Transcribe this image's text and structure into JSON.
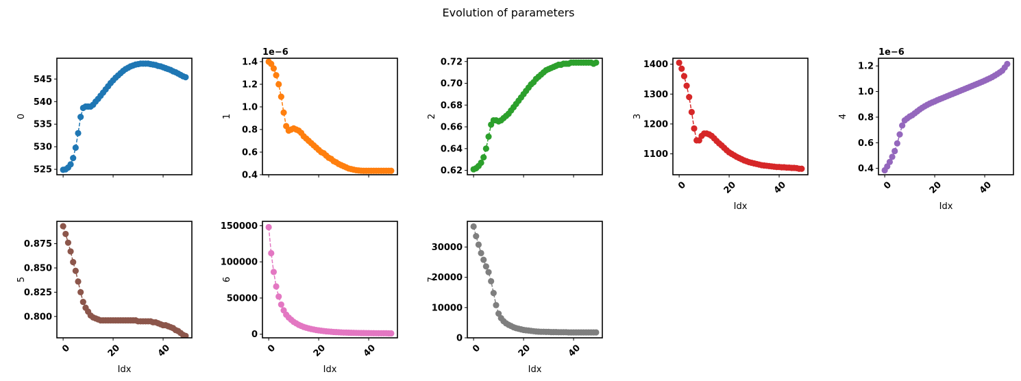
{
  "figure": {
    "suptitle": "Evolution of parameters"
  },
  "chart_data": [
    {
      "type": "line",
      "marker": "circle",
      "linestyle": "dashed",
      "color": "#1f77b4",
      "ylabel": "0",
      "xlabel": "",
      "xlim": [
        -2.5,
        51.5
      ],
      "ylim": [
        523.8,
        549.6
      ],
      "yticks": [
        525,
        530,
        535,
        540,
        545
      ],
      "ytick_labels": [
        "525",
        "530",
        "535",
        "540",
        "545"
      ],
      "xticks": [
        0,
        20,
        40
      ],
      "xtick_labels": [],
      "offset": "",
      "x": [
        0,
        1,
        2,
        3,
        4,
        5,
        6,
        7,
        8,
        9,
        10,
        11,
        12,
        13,
        14,
        15,
        16,
        17,
        18,
        19,
        20,
        21,
        22,
        23,
        24,
        25,
        26,
        27,
        28,
        29,
        30,
        31,
        32,
        33,
        34,
        35,
        36,
        37,
        38,
        39,
        40,
        41,
        42,
        43,
        44,
        45,
        46,
        47,
        48,
        49
      ],
      "y": [
        524.9,
        525.0,
        525.4,
        526.1,
        527.5,
        529.8,
        533.0,
        536.6,
        538.6,
        538.9,
        538.9,
        538.9,
        539.3,
        540.0,
        540.6,
        541.3,
        542.0,
        542.7,
        543.4,
        544.1,
        544.7,
        545.3,
        545.8,
        546.3,
        546.8,
        547.2,
        547.5,
        547.8,
        548.0,
        548.2,
        548.3,
        548.4,
        548.4,
        548.4,
        548.4,
        548.3,
        548.2,
        548.1,
        547.9,
        547.8,
        547.6,
        547.4,
        547.2,
        547.0,
        546.7,
        546.5,
        546.2,
        545.9,
        545.6,
        545.4
      ]
    },
    {
      "type": "line",
      "marker": "circle",
      "linestyle": "dashed",
      "color": "#ff7f0e",
      "ylabel": "1",
      "xlabel": "",
      "xlim": [
        -2.5,
        51.5
      ],
      "ylim": [
        0.4,
        1.43
      ],
      "yticks": [
        0.4,
        0.6,
        0.8,
        1.0,
        1.2,
        1.4
      ],
      "ytick_labels": [
        "0.4",
        "0.6",
        "0.8",
        "1.0",
        "1.2",
        "1.4"
      ],
      "xticks": [
        0,
        20,
        40
      ],
      "xtick_labels": [],
      "offset": "1e−6",
      "x": [
        0,
        1,
        2,
        3,
        4,
        5,
        6,
        7,
        8,
        9,
        10,
        11,
        12,
        13,
        14,
        15,
        16,
        17,
        18,
        19,
        20,
        21,
        22,
        23,
        24,
        25,
        26,
        27,
        28,
        29,
        30,
        31,
        32,
        33,
        34,
        35,
        36,
        37,
        38,
        39,
        40,
        41,
        42,
        43,
        44,
        45,
        46,
        47,
        48,
        49
      ],
      "y": [
        1.4,
        1.38,
        1.34,
        1.28,
        1.2,
        1.09,
        0.95,
        0.83,
        0.79,
        0.8,
        0.81,
        0.8,
        0.79,
        0.77,
        0.74,
        0.72,
        0.7,
        0.68,
        0.66,
        0.64,
        0.62,
        0.6,
        0.59,
        0.57,
        0.55,
        0.54,
        0.52,
        0.51,
        0.495,
        0.485,
        0.475,
        0.465,
        0.455,
        0.45,
        0.445,
        0.44,
        0.438,
        0.436,
        0.435,
        0.435,
        0.435,
        0.435,
        0.435,
        0.435,
        0.435,
        0.435,
        0.435,
        0.435,
        0.435,
        0.435
      ]
    },
    {
      "type": "line",
      "marker": "circle",
      "linestyle": "dashed",
      "color": "#2ca02c",
      "ylabel": "2",
      "xlabel": "",
      "xlim": [
        -2.5,
        51.5
      ],
      "ylim": [
        0.616,
        0.723
      ],
      "yticks": [
        0.62,
        0.64,
        0.66,
        0.68,
        0.7,
        0.72
      ],
      "ytick_labels": [
        "0.62",
        "0.64",
        "0.66",
        "0.68",
        "0.70",
        "0.72"
      ],
      "xticks": [
        0,
        20,
        40
      ],
      "xtick_labels": [],
      "offset": "",
      "x": [
        0,
        1,
        2,
        3,
        4,
        5,
        6,
        7,
        8,
        9,
        10,
        11,
        12,
        13,
        14,
        15,
        16,
        17,
        18,
        19,
        20,
        21,
        22,
        23,
        24,
        25,
        26,
        27,
        28,
        29,
        30,
        31,
        32,
        33,
        34,
        35,
        36,
        37,
        38,
        39,
        40,
        41,
        42,
        43,
        44,
        45,
        46,
        47,
        48,
        49
      ],
      "y": [
        0.621,
        0.622,
        0.624,
        0.627,
        0.632,
        0.64,
        0.651,
        0.662,
        0.666,
        0.666,
        0.665,
        0.666,
        0.668,
        0.67,
        0.672,
        0.675,
        0.678,
        0.681,
        0.684,
        0.687,
        0.69,
        0.693,
        0.696,
        0.699,
        0.701,
        0.704,
        0.706,
        0.708,
        0.71,
        0.712,
        0.713,
        0.714,
        0.715,
        0.716,
        0.717,
        0.717,
        0.718,
        0.718,
        0.718,
        0.719,
        0.719,
        0.719,
        0.719,
        0.719,
        0.719,
        0.719,
        0.719,
        0.719,
        0.718,
        0.719
      ]
    },
    {
      "type": "line",
      "marker": "circle",
      "linestyle": "dashed",
      "color": "#d62728",
      "ylabel": "3",
      "xlabel": "Idx",
      "xlim": [
        -2.5,
        51.5
      ],
      "ylim": [
        1030,
        1420
      ],
      "yticks": [
        1100,
        1200,
        1300,
        1400
      ],
      "ytick_labels": [
        "1100",
        "1200",
        "1300",
        "1400"
      ],
      "xticks": [
        0,
        20,
        40
      ],
      "xtick_labels": [
        "0",
        "20",
        "40"
      ],
      "offset": "",
      "x": [
        0,
        1,
        2,
        3,
        4,
        5,
        6,
        7,
        8,
        9,
        10,
        11,
        12,
        13,
        14,
        15,
        16,
        17,
        18,
        19,
        20,
        21,
        22,
        23,
        24,
        25,
        26,
        27,
        28,
        29,
        30,
        31,
        32,
        33,
        34,
        35,
        36,
        37,
        38,
        39,
        40,
        41,
        42,
        43,
        44,
        45,
        46,
        47,
        48,
        49
      ],
      "y": [
        1405,
        1385,
        1360,
        1328,
        1290,
        1240,
        1185,
        1145,
        1145,
        1160,
        1168,
        1168,
        1165,
        1160,
        1152,
        1143,
        1135,
        1128,
        1120,
        1112,
        1105,
        1100,
        1095,
        1090,
        1086,
        1082,
        1078,
        1075,
        1072,
        1070,
        1068,
        1066,
        1064,
        1062,
        1061,
        1060,
        1059,
        1058,
        1057,
        1056,
        1056,
        1055,
        1055,
        1054,
        1054,
        1053,
        1053,
        1052,
        1050,
        1050
      ]
    },
    {
      "type": "line",
      "marker": "circle",
      "linestyle": "dashed",
      "color": "#9467bd",
      "ylabel": "4",
      "xlabel": "Idx",
      "xlim": [
        -2.5,
        51.5
      ],
      "ylim": [
        0.35,
        1.26
      ],
      "yticks": [
        0.4,
        0.6,
        0.8,
        1.0,
        1.2
      ],
      "ytick_labels": [
        "0.4",
        "0.6",
        "0.8",
        "1.0",
        "1.2"
      ],
      "xticks": [
        0,
        20,
        40
      ],
      "xtick_labels": [
        "0",
        "20",
        "40"
      ],
      "offset": "1e−6",
      "x": [
        0,
        1,
        2,
        3,
        4,
        5,
        6,
        7,
        8,
        9,
        10,
        11,
        12,
        13,
        14,
        15,
        16,
        17,
        18,
        19,
        20,
        21,
        22,
        23,
        24,
        25,
        26,
        27,
        28,
        29,
        30,
        31,
        32,
        33,
        34,
        35,
        36,
        37,
        38,
        39,
        40,
        41,
        42,
        43,
        44,
        45,
        46,
        47,
        48,
        49
      ],
      "y": [
        0.385,
        0.415,
        0.45,
        0.49,
        0.535,
        0.595,
        0.665,
        0.735,
        0.775,
        0.79,
        0.805,
        0.815,
        0.83,
        0.845,
        0.86,
        0.873,
        0.885,
        0.896,
        0.906,
        0.915,
        0.923,
        0.932,
        0.94,
        0.948,
        0.956,
        0.964,
        0.972,
        0.98,
        0.988,
        0.996,
        1.004,
        1.012,
        1.02,
        1.028,
        1.036,
        1.044,
        1.052,
        1.06,
        1.068,
        1.076,
        1.085,
        1.094,
        1.103,
        1.113,
        1.124,
        1.136,
        1.149,
        1.163,
        1.188,
        1.215
      ]
    },
    {
      "type": "line",
      "marker": "circle",
      "linestyle": "dashed",
      "color": "#8c564b",
      "ylabel": "5",
      "xlabel": "Idx",
      "xlim": [
        -2.5,
        51.5
      ],
      "ylim": [
        0.778,
        0.898
      ],
      "yticks": [
        0.8,
        0.825,
        0.85,
        0.875
      ],
      "ytick_labels": [
        "0.800",
        "0.825",
        "0.850",
        "0.875"
      ],
      "xticks": [
        0,
        20,
        40
      ],
      "xtick_labels": [
        "0",
        "20",
        "40"
      ],
      "offset": "",
      "x": [
        0,
        1,
        2,
        3,
        4,
        5,
        6,
        7,
        8,
        9,
        10,
        11,
        12,
        13,
        14,
        15,
        16,
        17,
        18,
        19,
        20,
        21,
        22,
        23,
        24,
        25,
        26,
        27,
        28,
        29,
        30,
        31,
        32,
        33,
        34,
        35,
        36,
        37,
        38,
        39,
        40,
        41,
        42,
        43,
        44,
        45,
        46,
        47,
        48,
        49
      ],
      "y": [
        0.893,
        0.885,
        0.876,
        0.867,
        0.856,
        0.847,
        0.836,
        0.825,
        0.815,
        0.809,
        0.805,
        0.801,
        0.799,
        0.798,
        0.797,
        0.796,
        0.796,
        0.796,
        0.796,
        0.796,
        0.796,
        0.796,
        0.796,
        0.796,
        0.796,
        0.796,
        0.796,
        0.796,
        0.796,
        0.796,
        0.795,
        0.795,
        0.795,
        0.795,
        0.795,
        0.795,
        0.794,
        0.794,
        0.793,
        0.792,
        0.791,
        0.791,
        0.79,
        0.789,
        0.788,
        0.786,
        0.785,
        0.783,
        0.781,
        0.78
      ]
    },
    {
      "type": "line",
      "marker": "circle",
      "linestyle": "dashed",
      "color": "#e377c2",
      "ylabel": "6",
      "xlabel": "Idx",
      "xlim": [
        -2.5,
        51.5
      ],
      "ylim": [
        -5000,
        156000
      ],
      "yticks": [
        0,
        50000,
        100000,
        150000
      ],
      "ytick_labels": [
        "0",
        "50000",
        "100000",
        "150000"
      ],
      "xticks": [
        0,
        20,
        40
      ],
      "xtick_labels": [
        "0",
        "20",
        "40"
      ],
      "offset": "",
      "x": [
        0,
        1,
        2,
        3,
        4,
        5,
        6,
        7,
        8,
        9,
        10,
        11,
        12,
        13,
        14,
        15,
        16,
        17,
        18,
        19,
        20,
        21,
        22,
        23,
        24,
        25,
        26,
        27,
        28,
        29,
        30,
        31,
        32,
        33,
        34,
        35,
        36,
        37,
        38,
        39,
        40,
        41,
        42,
        43,
        44,
        45,
        46,
        47,
        48,
        49
      ],
      "y": [
        148000,
        112000,
        86000,
        66000,
        52000,
        41000,
        33000,
        27000,
        23000,
        20000,
        17000,
        15000,
        13000,
        11500,
        10000,
        9000,
        8000,
        7200,
        6500,
        5800,
        5300,
        4800,
        4400,
        4000,
        3700,
        3400,
        3100,
        2900,
        2700,
        2500,
        2300,
        2200,
        2100,
        2000,
        1900,
        1800,
        1700,
        1650,
        1600,
        1550,
        1500,
        1450,
        1400,
        1350,
        1300,
        1300,
        1250,
        1250,
        1200,
        1200
      ]
    },
    {
      "type": "line",
      "marker": "circle",
      "linestyle": "dashed",
      "color": "#7f7f7f",
      "ylabel": "7",
      "xlabel": "Idx",
      "xlim": [
        -2.5,
        51.5
      ],
      "ylim": [
        0,
        38500
      ],
      "yticks": [
        0,
        10000,
        20000,
        30000
      ],
      "ytick_labels": [
        "0",
        "10000",
        "20000",
        "30000"
      ],
      "xticks": [
        0,
        20,
        40
      ],
      "xtick_labels": [
        "0",
        "20",
        "40"
      ],
      "offset": "",
      "x": [
        0,
        1,
        2,
        3,
        4,
        5,
        6,
        7,
        8,
        9,
        10,
        11,
        12,
        13,
        14,
        15,
        16,
        17,
        18,
        19,
        20,
        21,
        22,
        23,
        24,
        25,
        26,
        27,
        28,
        29,
        30,
        31,
        32,
        33,
        34,
        35,
        36,
        37,
        38,
        39,
        40,
        41,
        42,
        43,
        44,
        45,
        46,
        47,
        48,
        49
      ],
      "y": [
        36800,
        33600,
        30800,
        28000,
        25800,
        23600,
        21700,
        18700,
        14800,
        10800,
        8000,
        6500,
        5500,
        4800,
        4300,
        3900,
        3500,
        3200,
        3000,
        2800,
        2600,
        2500,
        2400,
        2300,
        2200,
        2100,
        2050,
        2000,
        2000,
        1950,
        1950,
        1900,
        1900,
        1900,
        1850,
        1850,
        1850,
        1850,
        1800,
        1800,
        1800,
        1800,
        1800,
        1800,
        1800,
        1800,
        1800,
        1800,
        1800,
        1800
      ]
    }
  ]
}
